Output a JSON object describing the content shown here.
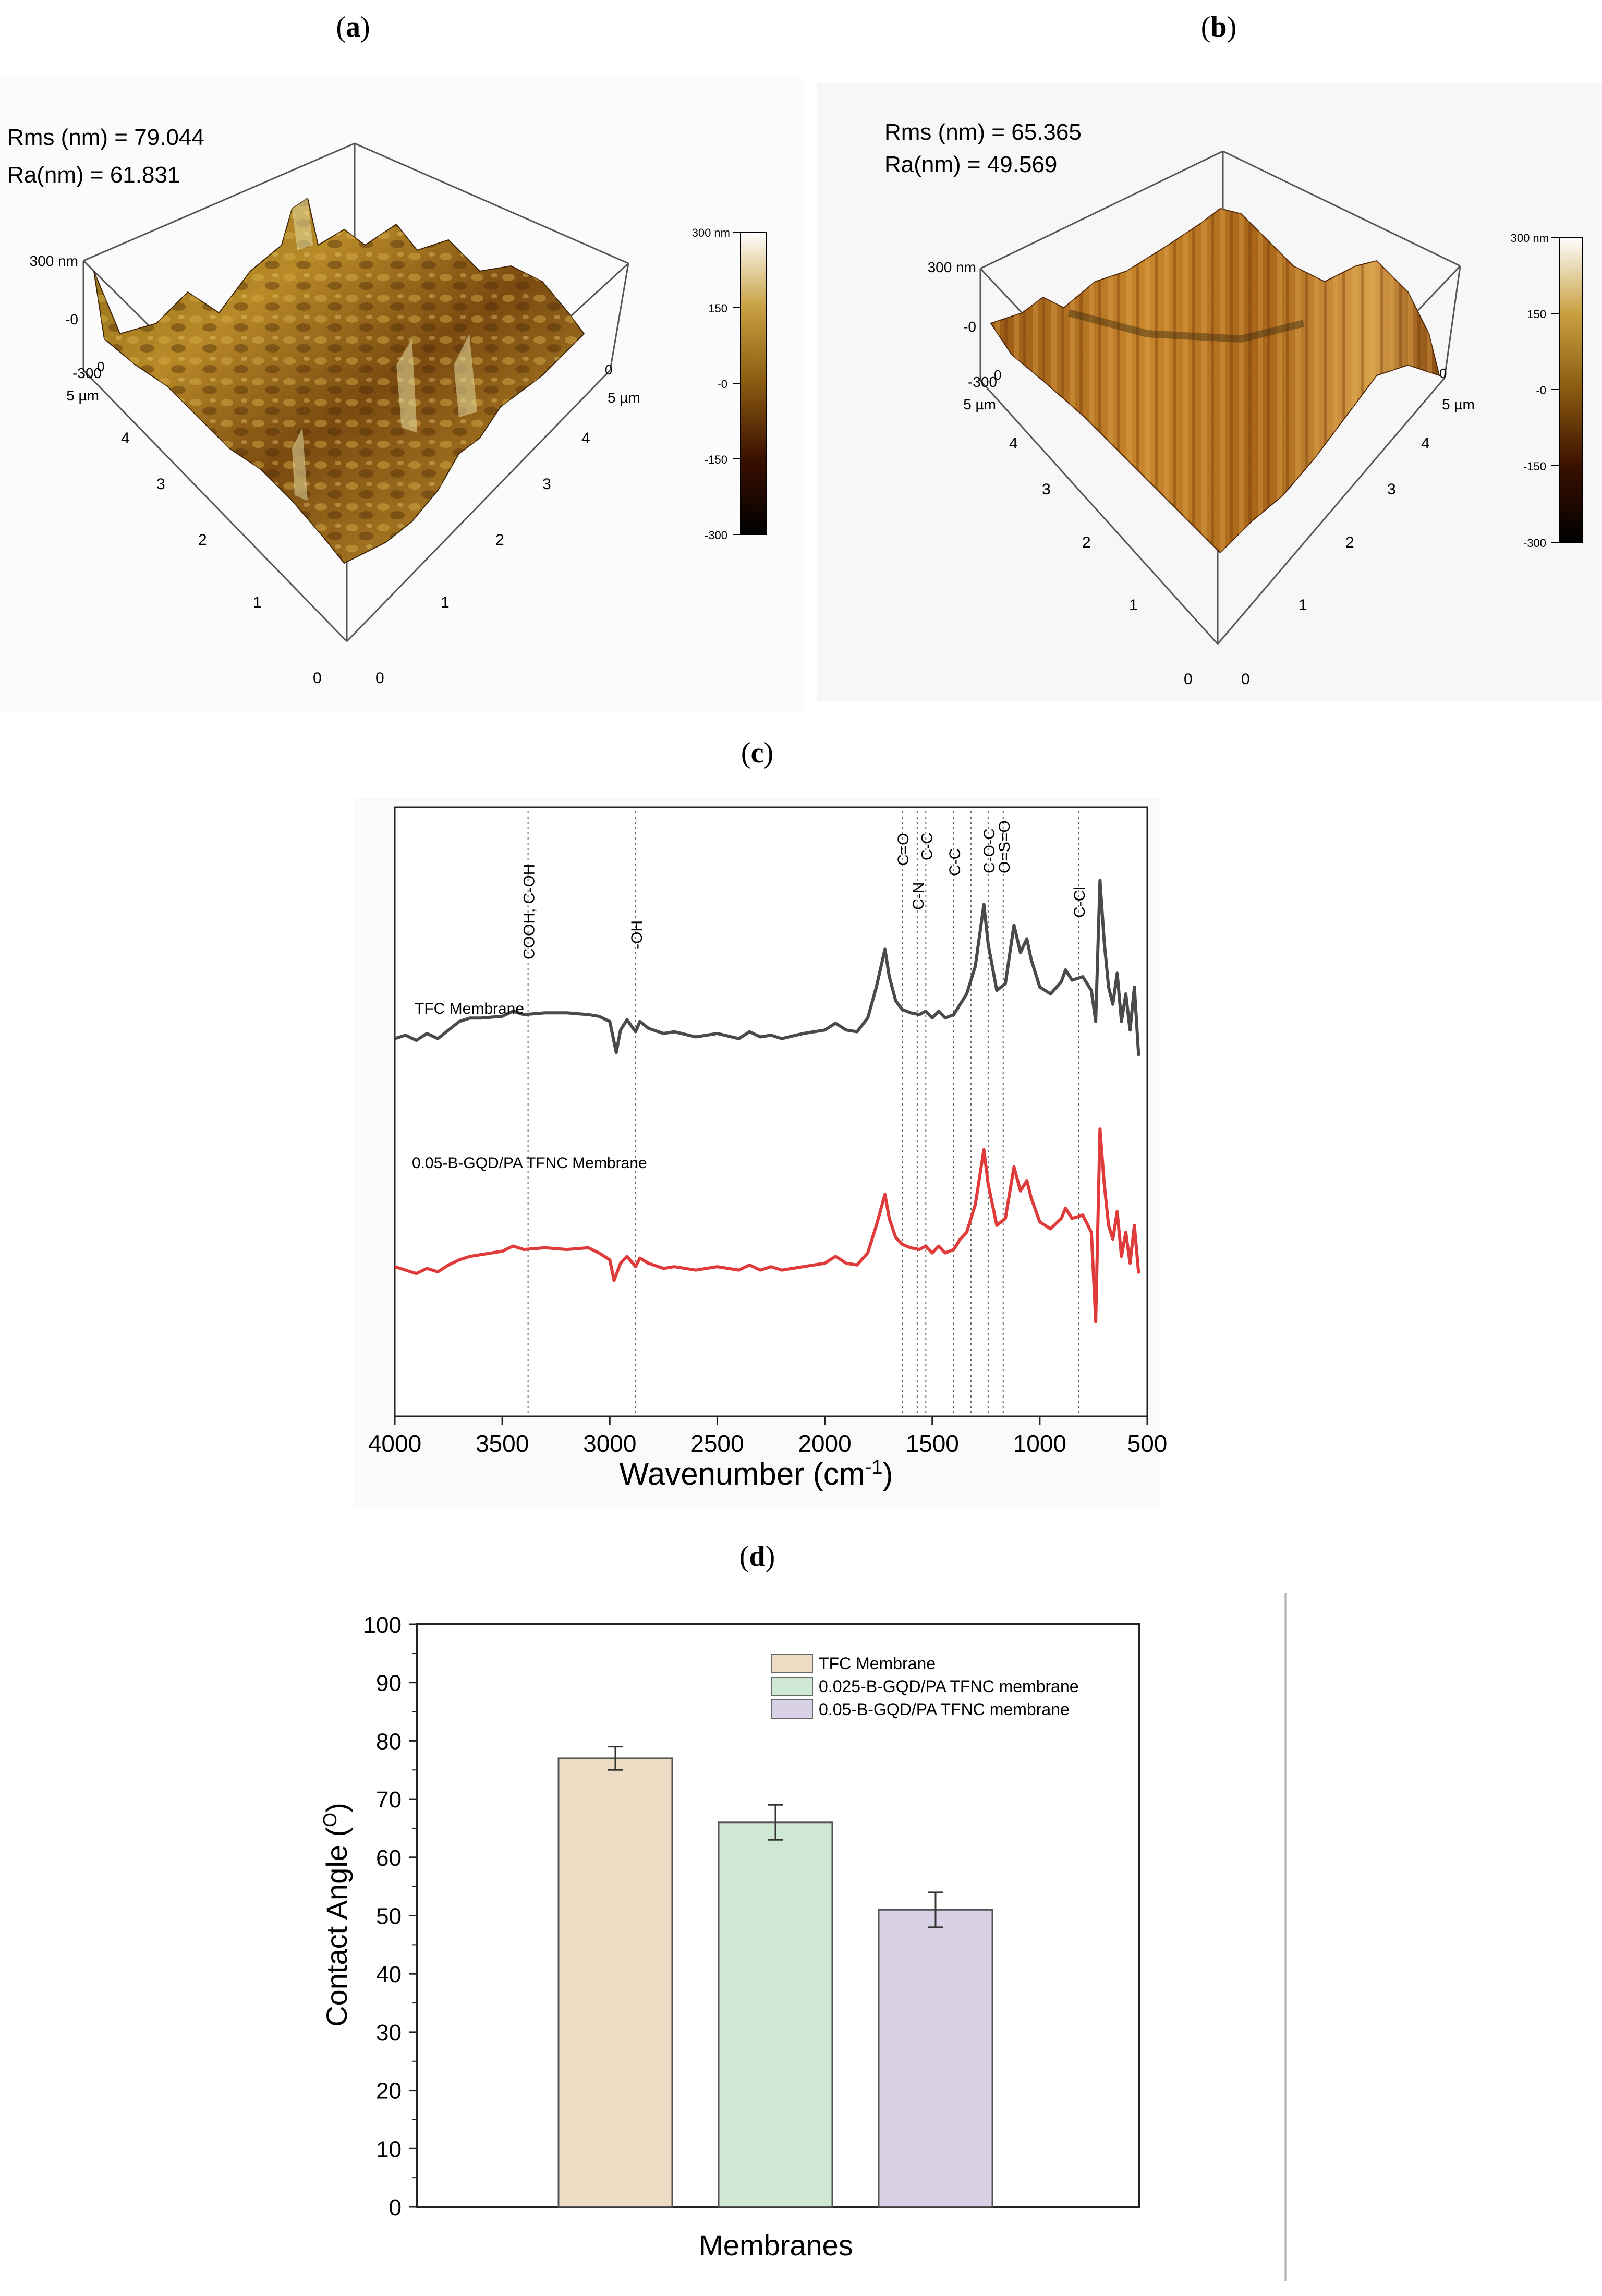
{
  "panels": {
    "a": {
      "label_open": "(",
      "label_letter": "a",
      "label_close": ")"
    },
    "b": {
      "label_open": "(",
      "label_letter": "b",
      "label_close": ")"
    },
    "c": {
      "label_open": "(",
      "label_letter": "c",
      "label_close": ")"
    },
    "d": {
      "label_open": "(",
      "label_letter": "d",
      "label_close": ")"
    }
  },
  "chart_data": [
    {
      "type": "surface3d",
      "panel": "a",
      "annotations": [
        "Rms (nm) = 79.044",
        "Ra(nm) = 61.831"
      ],
      "rms_nm": 79.044,
      "ra_nm": 61.831,
      "z_ticks": [
        "300 nm",
        "-0",
        "-300"
      ],
      "x_ticks": [
        "5 µm",
        "4",
        "3",
        "2",
        "1",
        "0"
      ],
      "y_ticks": [
        "0",
        "1",
        "2",
        "3",
        "4",
        "5 µm"
      ],
      "y_zero_label": "0",
      "colorbar": {
        "labels": [
          "300 nm",
          "150",
          "-0",
          "-150",
          "-300"
        ],
        "range": [
          -300,
          300
        ],
        "colors": [
          "#ffffff",
          "#c8a040",
          "#8a5a10",
          "#3a1000",
          "#000000"
        ]
      }
    },
    {
      "type": "surface3d",
      "panel": "b",
      "annotations": [
        "Rms (nm) = 65.365",
        "Ra(nm) = 49.569"
      ],
      "rms_nm": 65.365,
      "ra_nm": 49.569,
      "z_ticks": [
        "300 nm",
        "-0",
        "-300"
      ],
      "x_ticks": [
        "5 µm",
        "4",
        "3",
        "2",
        "1",
        "0"
      ],
      "y_ticks": [
        "0",
        "1",
        "2",
        "3",
        "4",
        "5 µm"
      ],
      "y_zero_label": "0",
      "colorbar": {
        "labels": [
          "300 nm",
          "150",
          "-0",
          "-150",
          "-300"
        ],
        "range": [
          -300,
          300
        ],
        "colors": [
          "#ffffff",
          "#c8a040",
          "#8a5a10",
          "#3a1000",
          "#000000"
        ]
      }
    },
    {
      "type": "line",
      "panel": "c",
      "xlabel_main": "Wavenumber (cm",
      "xlabel_sup": "-1",
      "xlabel_end": ")",
      "xlim": [
        4000,
        500
      ],
      "x_ticks": [
        4000,
        3500,
        3000,
        2500,
        2000,
        1500,
        1000,
        500
      ],
      "tick_labels": [
        "4000",
        "3500",
        "3000",
        "2500",
        "2000",
        "1500",
        "1000",
        "500"
      ],
      "reference_lines": [
        {
          "x": 3380,
          "label": "COOH, C-OH"
        },
        {
          "x": 2880,
          "label": "-OH"
        },
        {
          "x": 1640,
          "label": "C=O"
        },
        {
          "x": 1570,
          "label": "C-N"
        },
        {
          "x": 1530,
          "label": "C-C"
        },
        {
          "x": 1400,
          "label": "C-C"
        },
        {
          "x": 1320,
          "label": ""
        },
        {
          "x": 1240,
          "label": "C-O-C"
        },
        {
          "x": 1170,
          "label": "O=S=O"
        },
        {
          "x": 820,
          "label": "C-Cl"
        }
      ],
      "series": [
        {
          "name": "TFC Membrane",
          "color": "#4a4a4a",
          "offset": 0.62,
          "points": [
            [
              4000,
              0
            ],
            [
              3950,
              0.02
            ],
            [
              3900,
              -0.01
            ],
            [
              3850,
              0.03
            ],
            [
              3800,
              0
            ],
            [
              3750,
              0.05
            ],
            [
              3700,
              0.1
            ],
            [
              3650,
              0.12
            ],
            [
              3600,
              0.12
            ],
            [
              3500,
              0.13
            ],
            [
              3450,
              0.16
            ],
            [
              3400,
              0.14
            ],
            [
              3300,
              0.15
            ],
            [
              3200,
              0.15
            ],
            [
              3100,
              0.14
            ],
            [
              3050,
              0.13
            ],
            [
              3000,
              0.1
            ],
            [
              2970,
              -0.08
            ],
            [
              2950,
              0.05
            ],
            [
              2920,
              0.11
            ],
            [
              2880,
              0.04
            ],
            [
              2860,
              0.1
            ],
            [
              2820,
              0.06
            ],
            [
              2750,
              0.03
            ],
            [
              2700,
              0.04
            ],
            [
              2600,
              0.01
            ],
            [
              2500,
              0.03
            ],
            [
              2400,
              0
            ],
            [
              2350,
              0.04
            ],
            [
              2300,
              0.01
            ],
            [
              2250,
              0.02
            ],
            [
              2200,
              0
            ],
            [
              2100,
              0.03
            ],
            [
              2000,
              0.05
            ],
            [
              1950,
              0.09
            ],
            [
              1900,
              0.05
            ],
            [
              1850,
              0.04
            ],
            [
              1800,
              0.12
            ],
            [
              1760,
              0.3
            ],
            [
              1720,
              0.52
            ],
            [
              1700,
              0.36
            ],
            [
              1670,
              0.22
            ],
            [
              1640,
              0.17
            ],
            [
              1600,
              0.15
            ],
            [
              1560,
              0.14
            ],
            [
              1530,
              0.16
            ],
            [
              1500,
              0.12
            ],
            [
              1470,
              0.16
            ],
            [
              1440,
              0.12
            ],
            [
              1400,
              0.14
            ],
            [
              1370,
              0.2
            ],
            [
              1340,
              0.26
            ],
            [
              1300,
              0.42
            ],
            [
              1260,
              0.78
            ],
            [
              1240,
              0.55
            ],
            [
              1200,
              0.28
            ],
            [
              1160,
              0.32
            ],
            [
              1120,
              0.66
            ],
            [
              1090,
              0.5
            ],
            [
              1060,
              0.58
            ],
            [
              1040,
              0.46
            ],
            [
              1000,
              0.3
            ],
            [
              950,
              0.26
            ],
            [
              900,
              0.33
            ],
            [
              880,
              0.4
            ],
            [
              850,
              0.34
            ],
            [
              800,
              0.36
            ],
            [
              760,
              0.28
            ],
            [
              740,
              0.1
            ],
            [
              720,
              0.92
            ],
            [
              700,
              0.56
            ],
            [
              680,
              0.3
            ],
            [
              660,
              0.2
            ],
            [
              640,
              0.38
            ],
            [
              620,
              0.1
            ],
            [
              600,
              0.26
            ],
            [
              580,
              0.05
            ],
            [
              560,
              0.3
            ],
            [
              540,
              -0.1
            ]
          ]
        },
        {
          "name": "0.05-B-GQD/PA TFNC Membrane",
          "color": "#e03b3b",
          "offset": 0.24,
          "points": [
            [
              4000,
              0.02
            ],
            [
              3950,
              0
            ],
            [
              3900,
              -0.02
            ],
            [
              3850,
              0.01
            ],
            [
              3800,
              -0.01
            ],
            [
              3750,
              0.03
            ],
            [
              3700,
              0.06
            ],
            [
              3650,
              0.08
            ],
            [
              3600,
              0.09
            ],
            [
              3500,
              0.11
            ],
            [
              3450,
              0.14
            ],
            [
              3400,
              0.12
            ],
            [
              3300,
              0.13
            ],
            [
              3200,
              0.12
            ],
            [
              3100,
              0.13
            ],
            [
              3050,
              0.1
            ],
            [
              3000,
              0.06
            ],
            [
              2980,
              -0.06
            ],
            [
              2950,
              0.04
            ],
            [
              2920,
              0.08
            ],
            [
              2880,
              0.02
            ],
            [
              2860,
              0.07
            ],
            [
              2820,
              0.04
            ],
            [
              2750,
              0.01
            ],
            [
              2700,
              0.02
            ],
            [
              2600,
              0
            ],
            [
              2500,
              0.02
            ],
            [
              2400,
              0
            ],
            [
              2350,
              0.03
            ],
            [
              2300,
              0
            ],
            [
              2250,
              0.02
            ],
            [
              2200,
              0
            ],
            [
              2100,
              0.02
            ],
            [
              2000,
              0.04
            ],
            [
              1950,
              0.08
            ],
            [
              1900,
              0.04
            ],
            [
              1850,
              0.03
            ],
            [
              1800,
              0.1
            ],
            [
              1760,
              0.26
            ],
            [
              1720,
              0.44
            ],
            [
              1700,
              0.3
            ],
            [
              1670,
              0.19
            ],
            [
              1640,
              0.15
            ],
            [
              1600,
              0.13
            ],
            [
              1560,
              0.12
            ],
            [
              1530,
              0.14
            ],
            [
              1500,
              0.1
            ],
            [
              1470,
              0.14
            ],
            [
              1440,
              0.1
            ],
            [
              1400,
              0.12
            ],
            [
              1370,
              0.18
            ],
            [
              1340,
              0.22
            ],
            [
              1300,
              0.38
            ],
            [
              1260,
              0.7
            ],
            [
              1240,
              0.5
            ],
            [
              1200,
              0.26
            ],
            [
              1160,
              0.3
            ],
            [
              1120,
              0.6
            ],
            [
              1090,
              0.46
            ],
            [
              1060,
              0.52
            ],
            [
              1040,
              0.42
            ],
            [
              1000,
              0.28
            ],
            [
              950,
              0.24
            ],
            [
              900,
              0.3
            ],
            [
              880,
              0.36
            ],
            [
              850,
              0.3
            ],
            [
              800,
              0.32
            ],
            [
              760,
              0.22
            ],
            [
              740,
              -0.3
            ],
            [
              720,
              0.82
            ],
            [
              700,
              0.5
            ],
            [
              680,
              0.26
            ],
            [
              660,
              0.18
            ],
            [
              640,
              0.34
            ],
            [
              620,
              0.08
            ],
            [
              600,
              0.22
            ],
            [
              580,
              0.04
            ],
            [
              560,
              0.26
            ],
            [
              540,
              -0.02
            ]
          ]
        }
      ]
    },
    {
      "type": "bar",
      "panel": "d",
      "categories": [
        "TFC Membrane",
        "0.025-B-GQD/PA TFNC membrane",
        "0.05-B-GQD/PA TFNC membrane"
      ],
      "values": [
        77,
        66,
        51
      ],
      "errors": [
        2,
        3,
        3
      ],
      "colors": [
        "#eddcc4",
        "#cfe8d3",
        "#d9d2e6"
      ],
      "xlabel": "Membranes",
      "ylabel_main": "Contact Angle (",
      "ylabel_sup": "O",
      "ylabel_end": ")",
      "ylim": [
        0,
        100
      ],
      "y_ticks": [
        0,
        10,
        20,
        30,
        40,
        50,
        60,
        70,
        80,
        90,
        100
      ],
      "tick_labels": [
        "0",
        "10",
        "20",
        "30",
        "40",
        "50",
        "60",
        "70",
        "80",
        "90",
        "100"
      ],
      "legend_position": "top-right"
    }
  ]
}
